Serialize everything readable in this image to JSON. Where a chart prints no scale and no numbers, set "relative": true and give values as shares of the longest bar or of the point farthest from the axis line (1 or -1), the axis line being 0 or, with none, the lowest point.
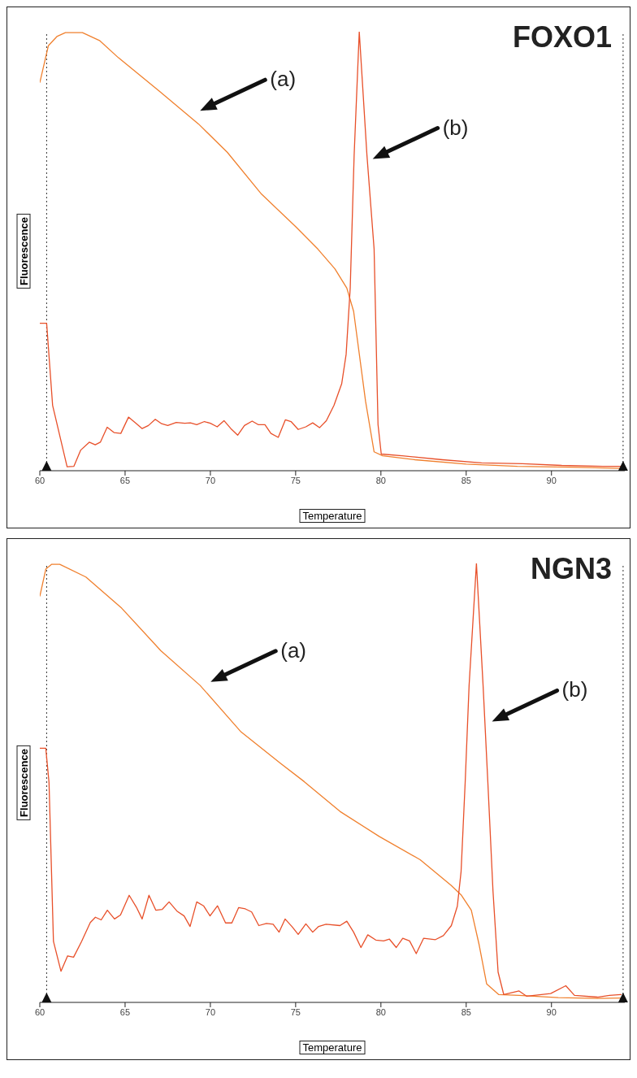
{
  "chart_data": [
    {
      "type": "line",
      "title": "FOXO1",
      "xlabel": "Temperature",
      "ylabel": "Fluorescence",
      "relative": true,
      "xlim": [
        60,
        94.3
      ],
      "xticks": [
        60,
        65,
        70,
        75,
        80,
        85,
        90
      ],
      "series": [
        {
          "color": "#f0802e",
          "x": [
            60,
            60.5,
            61,
            61.5,
            62.5,
            63.5,
            64.6,
            67,
            69.3,
            71,
            73,
            75,
            76.3,
            77.3,
            78.0,
            78.4,
            79.1,
            79.6,
            80.1,
            82,
            85,
            88,
            91,
            94.3
          ],
          "values": [
            0.884,
            0.968,
            0.989,
            0.998,
            0.998,
            0.98,
            0.941,
            0.865,
            0.79,
            0.725,
            0.63,
            0.556,
            0.505,
            0.46,
            0.416,
            0.363,
            0.158,
            0.043,
            0.034,
            0.025,
            0.015,
            0.01,
            0.008,
            0.005
          ]
        },
        {
          "color": "#e8502a",
          "x": [
            60.0,
            60.4,
            60.75,
            61.6,
            62.0,
            62.4,
            62.9,
            63.25,
            63.55,
            63.95,
            64.35,
            64.75,
            65.2,
            65.67,
            66.0,
            66.37,
            66.77,
            67.14,
            67.5,
            68.0,
            68.5,
            68.83,
            69.2,
            69.65,
            70.0,
            70.4,
            70.8,
            71.2,
            71.6,
            72.0,
            72.45,
            72.8,
            73.2,
            73.55,
            73.98,
            74.4,
            74.73,
            75.15,
            75.6,
            76.0,
            76.4,
            76.8,
            77.25,
            77.7,
            77.96,
            78.2,
            78.43,
            78.73,
            79.18,
            79.6,
            79.83,
            80.02,
            81.24,
            83.6,
            85.9,
            88.3,
            90.6,
            93.0,
            94.3
          ],
          "values": [
            0.336,
            0.336,
            0.149,
            0.009,
            0.01,
            0.047,
            0.065,
            0.059,
            0.065,
            0.099,
            0.087,
            0.085,
            0.122,
            0.107,
            0.096,
            0.103,
            0.117,
            0.107,
            0.103,
            0.11,
            0.108,
            0.109,
            0.105,
            0.112,
            0.108,
            0.1,
            0.114,
            0.096,
            0.081,
            0.103,
            0.113,
            0.105,
            0.105,
            0.085,
            0.076,
            0.116,
            0.112,
            0.094,
            0.1,
            0.109,
            0.098,
            0.114,
            0.149,
            0.198,
            0.265,
            0.416,
            0.719,
            1.0,
            0.719,
            0.505,
            0.105,
            0.038,
            0.034,
            0.025,
            0.018,
            0.016,
            0.012,
            0.01,
            0.01
          ]
        }
      ],
      "ref_lines": [
        {
          "axis": "x",
          "value": 60.4,
          "color": "#333333",
          "line_style": "dotted"
        },
        {
          "axis": "x",
          "value": 94.2,
          "color": "#333333",
          "line_style": "dotted"
        }
      ],
      "annotations": [
        "(a)",
        "(b)"
      ]
    },
    {
      "type": "line",
      "title": "NGN3",
      "xlabel": "Temperature",
      "ylabel": "Fluorescence",
      "relative": true,
      "xlim": [
        60,
        94.3
      ],
      "xticks": [
        60,
        65,
        70,
        75,
        80,
        85,
        90
      ],
      "series": [
        {
          "color": "#f0802e",
          "x": [
            60,
            60.35,
            60.7,
            61.17,
            62.7,
            64.8,
            67.1,
            69.4,
            71.8,
            74.1,
            75.5,
            77.6,
            79.9,
            82.3,
            84.1,
            84.7,
            85.3,
            85.76,
            86.2,
            86.9,
            88.1,
            90.4,
            92.7,
            94.1
          ],
          "values": [
            0.925,
            0.987,
            0.998,
            0.998,
            0.969,
            0.898,
            0.801,
            0.722,
            0.616,
            0.545,
            0.503,
            0.435,
            0.378,
            0.325,
            0.267,
            0.245,
            0.21,
            0.131,
            0.042,
            0.018,
            0.016,
            0.011,
            0.009,
            0.01
          ]
        },
        {
          "color": "#e8502a",
          "x": [
            60,
            60.35,
            60.54,
            60.8,
            61.24,
            61.63,
            61.98,
            62.45,
            62.96,
            63.26,
            63.6,
            63.96,
            64.38,
            64.73,
            65.24,
            65.66,
            66.0,
            66.4,
            66.8,
            67.18,
            67.58,
            68.04,
            68.46,
            68.81,
            69.2,
            69.6,
            69.98,
            70.42,
            70.89,
            71.26,
            71.66,
            72.05,
            72.42,
            72.84,
            73.29,
            73.68,
            74.03,
            74.38,
            74.8,
            75.15,
            75.6,
            76.0,
            76.35,
            76.78,
            77.6,
            78.0,
            78.4,
            78.83,
            79.23,
            79.7,
            80.16,
            80.5,
            80.9,
            81.28,
            81.68,
            82.07,
            82.5,
            83.2,
            83.66,
            84.13,
            84.48,
            84.7,
            84.94,
            85.17,
            85.6,
            85.99,
            86.27,
            86.57,
            86.87,
            87.2,
            88.1,
            88.55,
            89.95,
            90.84,
            91.35,
            92.7,
            93.4,
            94.1
          ],
          "values": [
            0.579,
            0.579,
            0.501,
            0.139,
            0.071,
            0.106,
            0.103,
            0.139,
            0.182,
            0.194,
            0.188,
            0.21,
            0.19,
            0.199,
            0.244,
            0.217,
            0.19,
            0.244,
            0.21,
            0.212,
            0.229,
            0.208,
            0.197,
            0.173,
            0.229,
            0.22,
            0.197,
            0.22,
            0.181,
            0.181,
            0.216,
            0.213,
            0.206,
            0.175,
            0.18,
            0.178,
            0.16,
            0.19,
            0.172,
            0.155,
            0.179,
            0.16,
            0.173,
            0.178,
            0.175,
            0.185,
            0.16,
            0.125,
            0.154,
            0.142,
            0.14,
            0.144,
            0.125,
            0.146,
            0.14,
            0.111,
            0.146,
            0.143,
            0.152,
            0.175,
            0.219,
            0.298,
            0.501,
            0.722,
            1.0,
            0.722,
            0.501,
            0.254,
            0.069,
            0.018,
            0.026,
            0.014,
            0.02,
            0.038,
            0.016,
            0.012,
            0.016,
            0.018
          ]
        }
      ],
      "ref_lines": [
        {
          "axis": "x",
          "value": 60.4,
          "color": "#333333",
          "line_style": "dotted"
        },
        {
          "axis": "x",
          "value": 94.2,
          "color": "#333333",
          "line_style": "dotted"
        }
      ],
      "annotations": [
        "(a)",
        "(b)"
      ]
    }
  ]
}
